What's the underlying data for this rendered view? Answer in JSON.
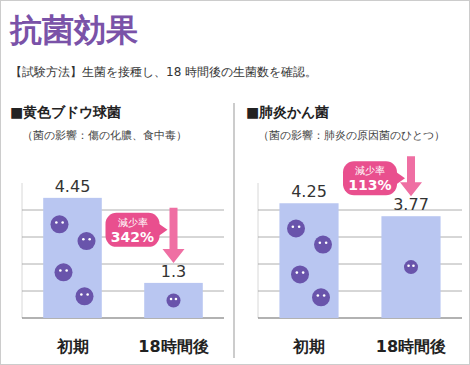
{
  "header": {
    "title": "抗菌効果",
    "subtitle": "【試験方法】生菌を接種し、18 時間後の生菌数を確認。"
  },
  "chart_data": [
    {
      "type": "bar",
      "title": "■黄色ブドウ球菌",
      "subtitle": "（菌の影響：傷の化膿、食中毒）",
      "categories": [
        "初期",
        "18時間後"
      ],
      "values": [
        4.45,
        1.3
      ],
      "color": "#b9c6f1",
      "ylim": [
        0,
        5
      ],
      "yticks": [
        0,
        1,
        2,
        3,
        4
      ],
      "grid": true,
      "data_labels": true,
      "tick_labels": "x",
      "annotation": {
        "title": "減少率",
        "text": "342%"
      }
    },
    {
      "type": "bar",
      "title": "■肺炎かん菌",
      "subtitle": "（菌の影響：肺炎の原因菌のひとつ）",
      "categories": [
        "初期",
        "18時間後"
      ],
      "values": [
        4.25,
        3.77
      ],
      "color": "#b9c6f1",
      "ylim": [
        0,
        5
      ],
      "yticks": [
        0,
        1,
        2,
        3,
        4
      ],
      "grid": true,
      "data_labels": true,
      "tick_labels": "x",
      "annotation": {
        "title": "減少率",
        "text": "113%"
      }
    }
  ]
}
